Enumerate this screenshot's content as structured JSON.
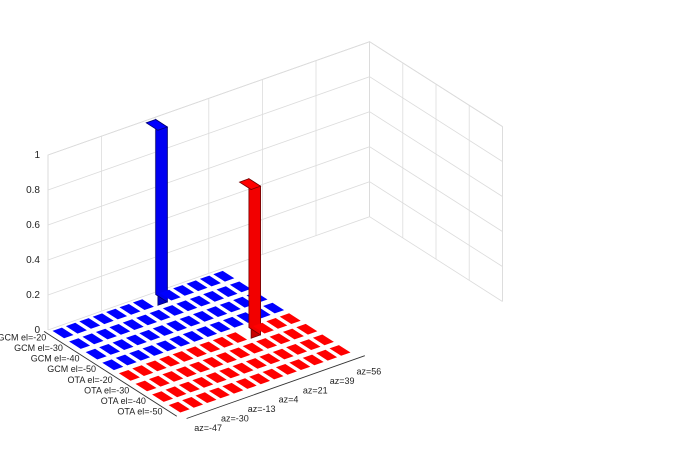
{
  "chart_data": {
    "type": "bar3d",
    "title": "",
    "xlabel": "",
    "ylabel": "",
    "zlabel": "",
    "zlim": [
      0,
      1
    ],
    "z_ticks": [
      "0",
      "0.2",
      "0.4",
      "0.6",
      "0.8",
      "1"
    ],
    "grid": true,
    "rows": [
      "GCM el=-20",
      "GCM el=-30",
      "GCM el=-40",
      "GCM el=-50",
      "OTA el=-20",
      "OTA el=-30",
      "OTA el=-40",
      "OTA el=-50"
    ],
    "row_colors": [
      "#0000ff",
      "#0000ff",
      "#0000ff",
      "#0000ff",
      "#ff0000",
      "#ff0000",
      "#ff0000",
      "#ff0000"
    ],
    "column_tick_labels": [
      "az=-47",
      "az=-30",
      "az=-13",
      "az=4",
      "az=21",
      "az=39",
      "az=56"
    ],
    "column_tick_positions": [
      1,
      3,
      5,
      7,
      9,
      11,
      13
    ],
    "column_count": 13,
    "peaks": [
      {
        "row": "GCM el=-20",
        "column": 8,
        "value": 1.0
      },
      {
        "row": "OTA el=-20",
        "column": 10,
        "value": 0.85
      }
    ],
    "baseline_value": 0.0
  }
}
